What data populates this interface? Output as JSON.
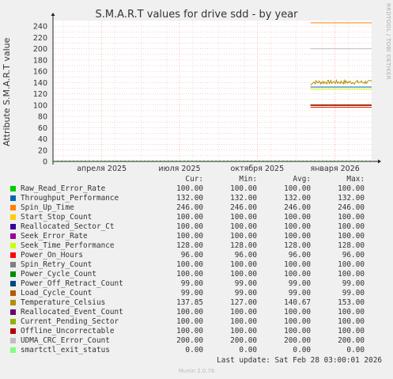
{
  "title": "S.M.A.R.T values for drive sdd - by year",
  "vertical_label": "RRDTOOL / TOBI OETIKER",
  "footer": "Munin 2.0.76",
  "last_update": "Last update: Sat Feb 28 03:00:01 2026",
  "legend_headers": [
    "Cur:",
    "Min:",
    "Avg:",
    "Max:"
  ],
  "chart_data": {
    "type": "line",
    "title": "S.M.A.R.T values for drive sdd - by year",
    "ylabel": "Attribute S.M.A.R.T value",
    "ylim": [
      0,
      250
    ],
    "yticks": [
      0,
      10,
      20,
      30,
      40,
      50,
      60,
      70,
      80,
      90,
      100,
      110,
      120,
      130,
      140,
      150,
      160,
      170,
      180,
      190,
      200,
      210,
      220,
      230,
      240
    ],
    "xticks": [
      "апреля 2025",
      "июля 2025",
      "октября 2025",
      "января 2026"
    ],
    "grid": true,
    "data_start_fraction": 0.808,
    "series": [
      {
        "name": "Raw_Read_Error_Rate",
        "color": "#00cc00",
        "cur": "100.00",
        "min": "100.00",
        "avg": "100.00",
        "max": "100.00",
        "value": 100
      },
      {
        "name": "Throughput_Performance",
        "color": "#0066b3",
        "cur": "132.00",
        "min": "132.00",
        "avg": "132.00",
        "max": "132.00",
        "value": 132
      },
      {
        "name": "Spin_Up_Time",
        "color": "#ff8000",
        "cur": "246.00",
        "min": "246.00",
        "avg": "246.00",
        "max": "246.00",
        "value": 246
      },
      {
        "name": "Start_Stop_Count",
        "color": "#ffcc00",
        "cur": "100.00",
        "min": "100.00",
        "avg": "100.00",
        "max": "100.00",
        "value": 100
      },
      {
        "name": "Reallocated_Sector_Ct",
        "color": "#330099",
        "cur": "100.00",
        "min": "100.00",
        "avg": "100.00",
        "max": "100.00",
        "value": 100
      },
      {
        "name": "Seek_Error_Rate",
        "color": "#990099",
        "cur": "100.00",
        "min": "100.00",
        "avg": "100.00",
        "max": "100.00",
        "value": 100
      },
      {
        "name": "Seek_Time_Performance",
        "color": "#ccff00",
        "cur": "128.00",
        "min": "128.00",
        "avg": "128.00",
        "max": "128.00",
        "value": 128
      },
      {
        "name": "Power_On_Hours",
        "color": "#ff0000",
        "cur": "96.00",
        "min": "96.00",
        "avg": "96.00",
        "max": "96.00",
        "value": 96
      },
      {
        "name": "Spin_Retry_Count",
        "color": "#808080",
        "cur": "100.00",
        "min": "100.00",
        "avg": "100.00",
        "max": "100.00",
        "value": 100
      },
      {
        "name": "Power_Cycle_Count",
        "color": "#008f00",
        "cur": "100.00",
        "min": "100.00",
        "avg": "100.00",
        "max": "100.00",
        "value": 100
      },
      {
        "name": "Power_Off_Retract_Count",
        "color": "#00487d",
        "cur": "99.00",
        "min": "99.00",
        "avg": "99.00",
        "max": "99.00",
        "value": 99
      },
      {
        "name": "Load_Cycle_Count",
        "color": "#b35a00",
        "cur": "99.00",
        "min": "99.00",
        "avg": "99.00",
        "max": "99.00",
        "value": 99
      },
      {
        "name": "Temperature_Celsius",
        "color": "#b38f00",
        "cur": "137.85",
        "min": "127.00",
        "avg": "140.67",
        "max": "153.00",
        "value": 140.67,
        "noisy": true
      },
      {
        "name": "Reallocated_Event_Count",
        "color": "#6b006b",
        "cur": "100.00",
        "min": "100.00",
        "avg": "100.00",
        "max": "100.00",
        "value": 100
      },
      {
        "name": "Current_Pending_Sector",
        "color": "#8fb300",
        "cur": "100.00",
        "min": "100.00",
        "avg": "100.00",
        "max": "100.00",
        "value": 100
      },
      {
        "name": "Offline_Uncorrectable",
        "color": "#b30000",
        "cur": "100.00",
        "min": "100.00",
        "avg": "100.00",
        "max": "100.00",
        "value": 100
      },
      {
        "name": "UDMA_CRC_Error_Count",
        "color": "#bebebe",
        "cur": "200.00",
        "min": "200.00",
        "avg": "200.00",
        "max": "200.00",
        "value": 200
      },
      {
        "name": "smartctl_exit_status",
        "color": "#80ff80",
        "cur": "0.00",
        "min": "0.00",
        "avg": "0.00",
        "max": "0.00",
        "value": 0
      }
    ]
  }
}
